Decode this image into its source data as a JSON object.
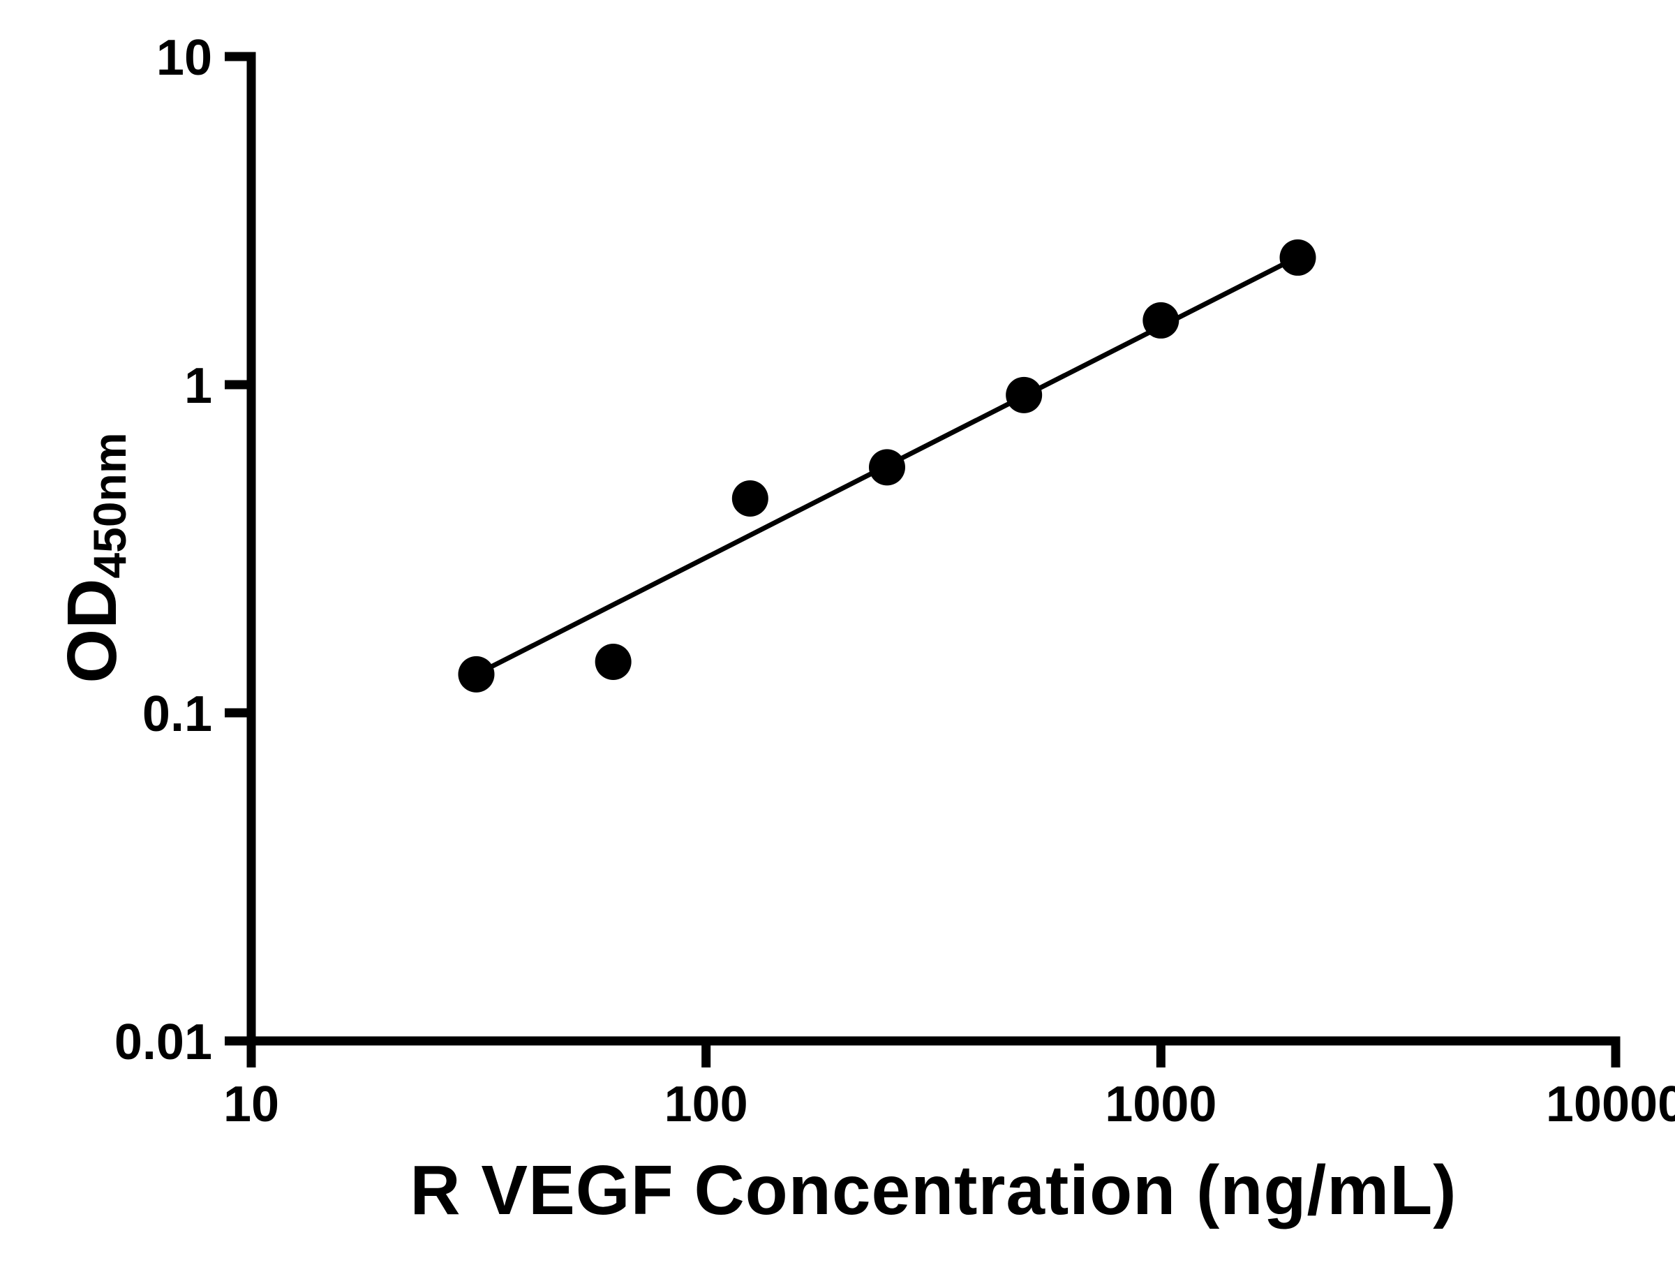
{
  "chart_data": {
    "type": "scatter",
    "title": "",
    "xlabel": "R VEGF Concentration (ng/mL)",
    "ylabel_main": "OD",
    "ylabel_sub": "450nm",
    "x_scale": "log",
    "y_scale": "log",
    "xlim": [
      10,
      10000
    ],
    "ylim": [
      0.01,
      10
    ],
    "grid": "off",
    "legend": "none",
    "x_ticks": [
      {
        "value": 10,
        "label": "10"
      },
      {
        "value": 100,
        "label": "100"
      },
      {
        "value": 1000,
        "label": "1000"
      },
      {
        "value": 10000,
        "label": "10000"
      }
    ],
    "y_ticks": [
      {
        "value": 0.01,
        "label": "0.01"
      },
      {
        "value": 0.1,
        "label": "0.1"
      },
      {
        "value": 1,
        "label": "1"
      },
      {
        "value": 10,
        "label": "10"
      }
    ],
    "points": [
      {
        "x": 31.25,
        "y": 0.131
      },
      {
        "x": 62.5,
        "y": 0.143
      },
      {
        "x": 125,
        "y": 0.45
      },
      {
        "x": 250,
        "y": 0.56
      },
      {
        "x": 500,
        "y": 0.93
      },
      {
        "x": 1000,
        "y": 1.57
      },
      {
        "x": 2000,
        "y": 2.44
      }
    ],
    "fit_line": {
      "x_start": 31.25,
      "y_start": 0.131,
      "x_end": 2000,
      "y_end": 2.45
    },
    "colors": {
      "axis": "#000000",
      "marker": "#000000",
      "line": "#000000",
      "background": "#ffffff"
    }
  }
}
